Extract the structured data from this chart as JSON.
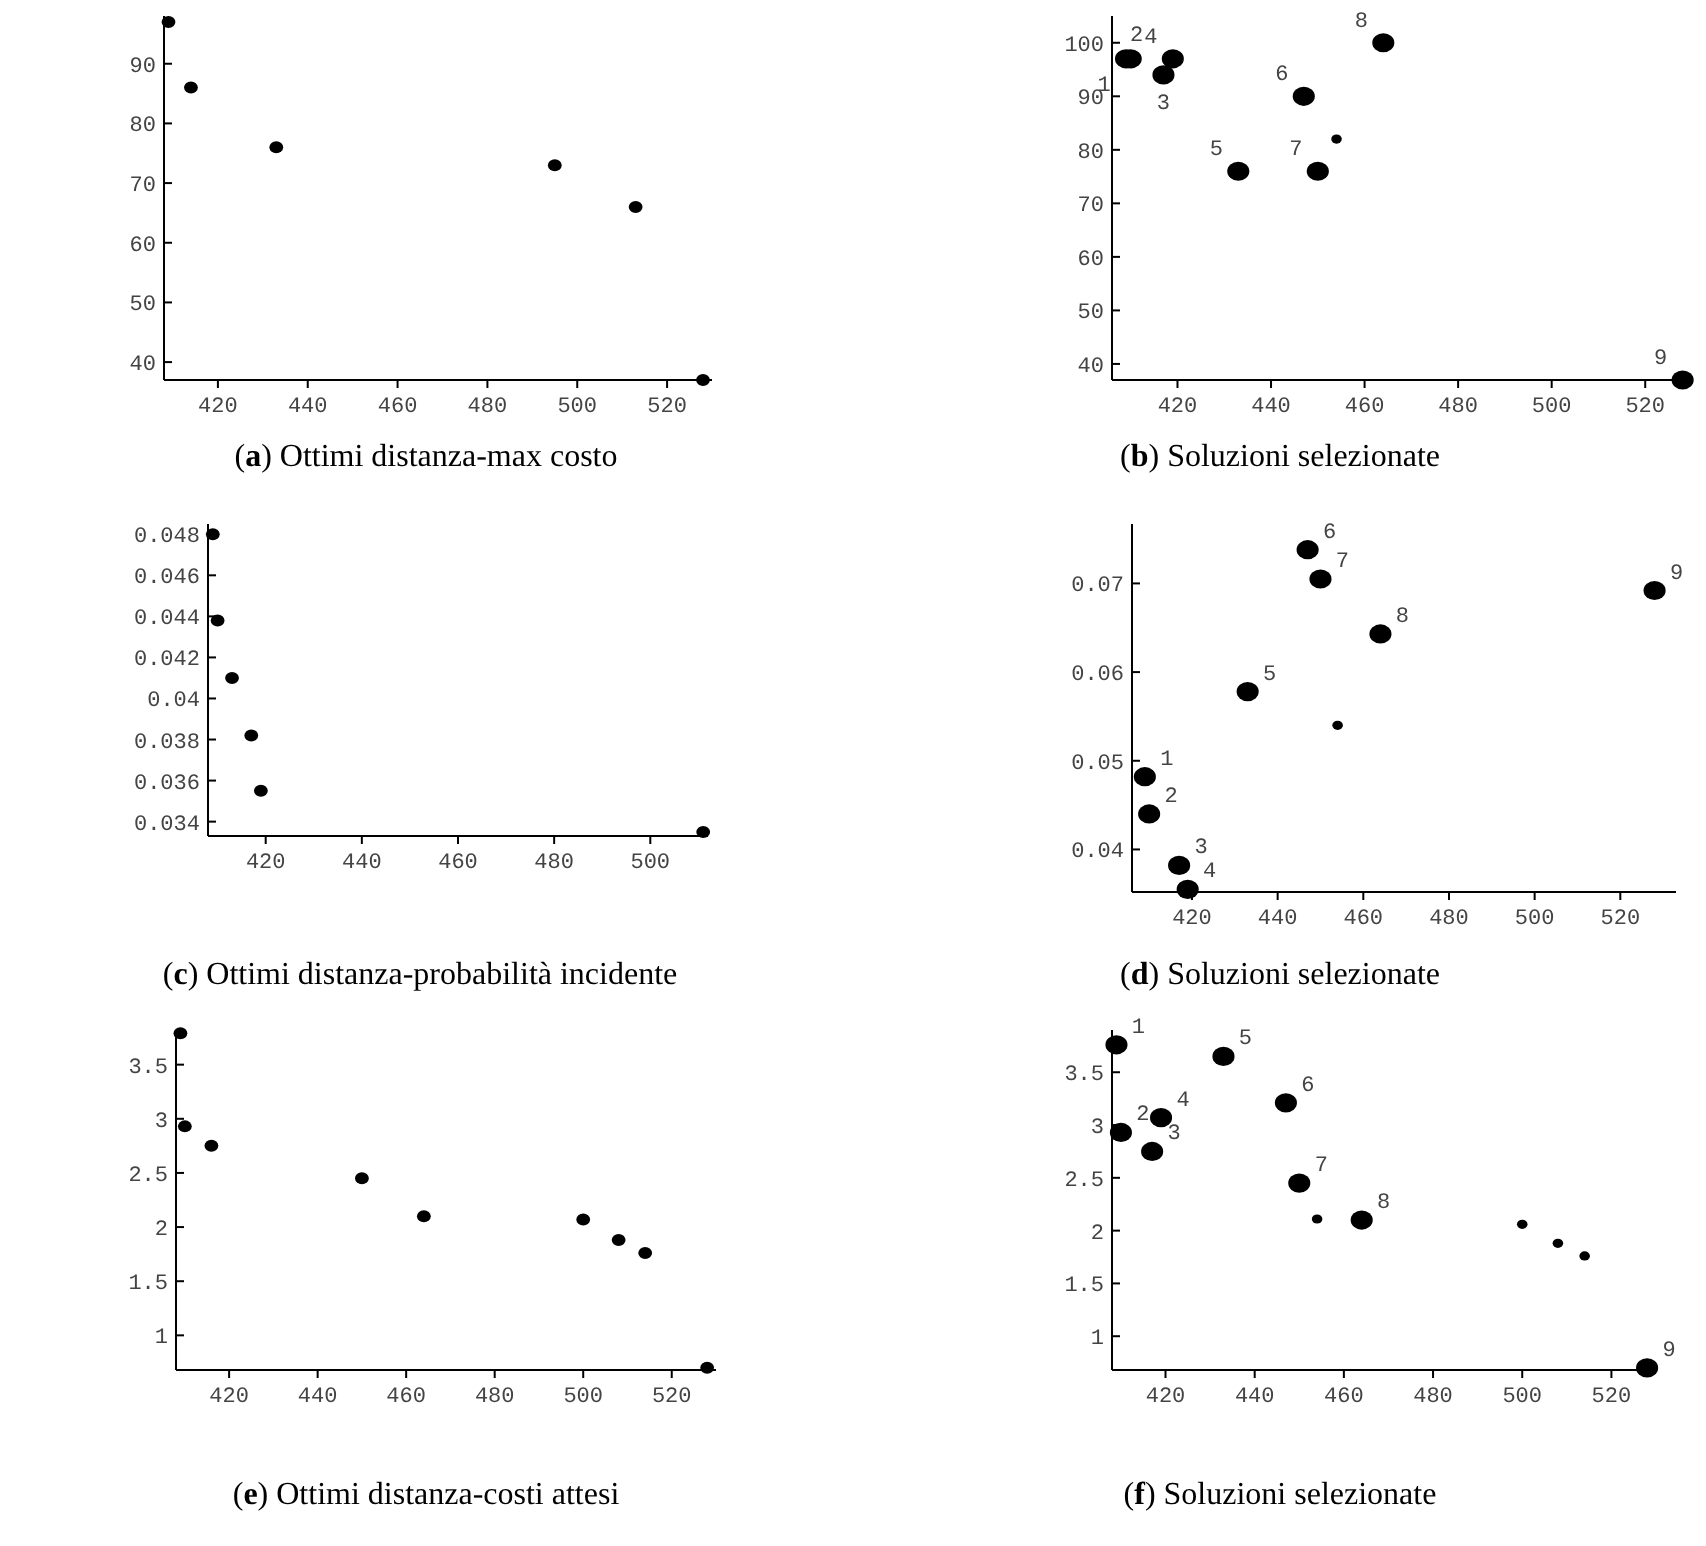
{
  "chart_data": [
    {
      "type": "scatter",
      "title": "(a) Ottimi distanza-max costo",
      "marker": "circle",
      "xlim": [
        408,
        530
      ],
      "ylim": [
        37,
        98
      ],
      "xticks": [
        420,
        440,
        460,
        480,
        500,
        520
      ],
      "yticks": [
        40,
        50,
        60,
        70,
        80,
        90
      ],
      "series": [
        {
          "color": "#000000",
          "x": [
            409,
            414,
            433,
            495,
            513,
            528
          ],
          "values": [
            97,
            86,
            76,
            73,
            66,
            37
          ]
        }
      ]
    },
    {
      "type": "scatter",
      "title": "(b) Soluzioni selezionate",
      "marker": "circle",
      "xlim": [
        406,
        530
      ],
      "ylim": [
        37,
        105
      ],
      "xticks": [
        420,
        440,
        460,
        480,
        500,
        520
      ],
      "yticks": [
        40,
        50,
        60,
        70,
        80,
        90,
        100
      ],
      "series": [
        {
          "color": "#000000",
          "x": [
            409,
            410,
            417,
            419,
            433,
            447,
            450,
            464,
            528
          ],
          "values": [
            97,
            97,
            94,
            97,
            76,
            90,
            76,
            100,
            37
          ]
        },
        {
          "color": "#000000",
          "x": [
            454
          ],
          "values": [
            82
          ]
        }
      ],
      "annotations": [
        {
          "text": "1",
          "x": 409,
          "y": 97
        },
        {
          "text": "2",
          "x": 410,
          "y": 97
        },
        {
          "text": "3",
          "x": 417,
          "y": 94
        },
        {
          "text": "4",
          "x": 419,
          "y": 97
        },
        {
          "text": "5",
          "x": 433,
          "y": 76
        },
        {
          "text": "6",
          "x": 447,
          "y": 90
        },
        {
          "text": "7",
          "x": 450,
          "y": 76
        },
        {
          "text": "8",
          "x": 464,
          "y": 100
        },
        {
          "text": "9",
          "x": 528,
          "y": 37
        }
      ]
    },
    {
      "type": "scatter",
      "title": "(c) Ottimi distanza-probabilità incidente",
      "marker": "circle",
      "xlim": [
        408,
        512
      ],
      "ylim": [
        0.0333,
        0.0485
      ],
      "xticks": [
        420,
        440,
        460,
        480,
        500
      ],
      "yticks": [
        0.034,
        0.036,
        0.038,
        {
          "value": 0.04,
          "label": "0.04"
        },
        0.042,
        0.044,
        0.046,
        0.048
      ],
      "series": [
        {
          "color": "#000000",
          "x": [
            409,
            410,
            413,
            417,
            419,
            511
          ],
          "values": [
            0.048,
            0.0438,
            0.041,
            0.0382,
            0.0355,
            0.0335
          ]
        }
      ]
    },
    {
      "type": "scatter",
      "title": "(d) Soluzioni selezionate",
      "marker": "circle",
      "xlim": [
        406,
        533
      ],
      "ylim": [
        0.0352,
        0.0767
      ],
      "xticks": [
        420,
        440,
        460,
        480,
        500,
        520
      ],
      "yticks": [
        {
          "value": 0.04,
          "label": "0.04"
        },
        {
          "value": 0.05,
          "label": "0.05"
        },
        {
          "value": 0.06,
          "label": "0.06"
        },
        {
          "value": 0.07,
          "label": "0.07"
        }
      ],
      "series": [
        {
          "color": "#000000",
          "x": [
            409,
            410,
            417,
            419,
            433,
            447,
            450,
            464,
            528
          ],
          "values": [
            0.0482,
            0.044,
            0.0382,
            0.0355,
            0.0578,
            0.0738,
            0.0705,
            0.0643,
            0.0692
          ]
        },
        {
          "color": "#000000",
          "x": [
            454
          ],
          "values": [
            0.054
          ]
        }
      ],
      "annotations": [
        {
          "text": "1",
          "x": 409,
          "y": 0.0482
        },
        {
          "text": "2",
          "x": 410,
          "y": 0.044
        },
        {
          "text": "3",
          "x": 417,
          "y": 0.0382
        },
        {
          "text": "4",
          "x": 419,
          "y": 0.0355
        },
        {
          "text": "5",
          "x": 433,
          "y": 0.0578
        },
        {
          "text": "6",
          "x": 447,
          "y": 0.0738
        },
        {
          "text": "7",
          "x": 450,
          "y": 0.0705
        },
        {
          "text": "8",
          "x": 464,
          "y": 0.0643
        },
        {
          "text": "9",
          "x": 528,
          "y": 0.0692
        }
      ]
    },
    {
      "type": "scatter",
      "title": "(e) Ottimi distanza-costi attesi",
      "marker": "circle",
      "xlim": [
        408,
        530
      ],
      "ylim": [
        0.68,
        3.82
      ],
      "xticks": [
        420,
        440,
        460,
        480,
        500,
        520
      ],
      "yticks": [
        1,
        1.5,
        2,
        2.5,
        3,
        3.5
      ],
      "series": [
        {
          "color": "#000000",
          "x": [
            409,
            410,
            416,
            450,
            464,
            500,
            508,
            514,
            528
          ],
          "values": [
            3.79,
            2.93,
            2.75,
            2.45,
            2.1,
            2.07,
            1.88,
            1.76,
            0.7
          ]
        }
      ]
    },
    {
      "type": "scatter",
      "title": "(f) Soluzioni selezionate",
      "marker": "circle",
      "xlim": [
        408,
        530
      ],
      "ylim": [
        0.68,
        3.9
      ],
      "xticks": [
        420,
        440,
        460,
        480,
        500,
        520
      ],
      "yticks": [
        1,
        1.5,
        2,
        2.5,
        3,
        3.5
      ],
      "series": [
        {
          "color": "#000000",
          "x": [
            409,
            410,
            417,
            419,
            433,
            447,
            450,
            464,
            528
          ],
          "values": [
            3.76,
            2.93,
            2.75,
            3.07,
            3.65,
            3.21,
            2.45,
            2.1,
            0.7
          ]
        },
        {
          "color": "#000000",
          "x": [
            454,
            500,
            508,
            514
          ],
          "values": [
            2.11,
            2.06,
            1.88,
            1.76
          ]
        }
      ],
      "annotations": [
        {
          "text": "1",
          "x": 409,
          "y": 3.76
        },
        {
          "text": "2",
          "x": 410,
          "y": 2.93
        },
        {
          "text": "3",
          "x": 417,
          "y": 2.75
        },
        {
          "text": "4",
          "x": 419,
          "y": 3.07
        },
        {
          "text": "5",
          "x": 433,
          "y": 3.65
        },
        {
          "text": "6",
          "x": 447,
          "y": 3.21
        },
        {
          "text": "7",
          "x": 450,
          "y": 2.45
        },
        {
          "text": "8",
          "x": 464,
          "y": 2.1
        },
        {
          "text": "9",
          "x": 528,
          "y": 0.7
        }
      ]
    }
  ]
}
